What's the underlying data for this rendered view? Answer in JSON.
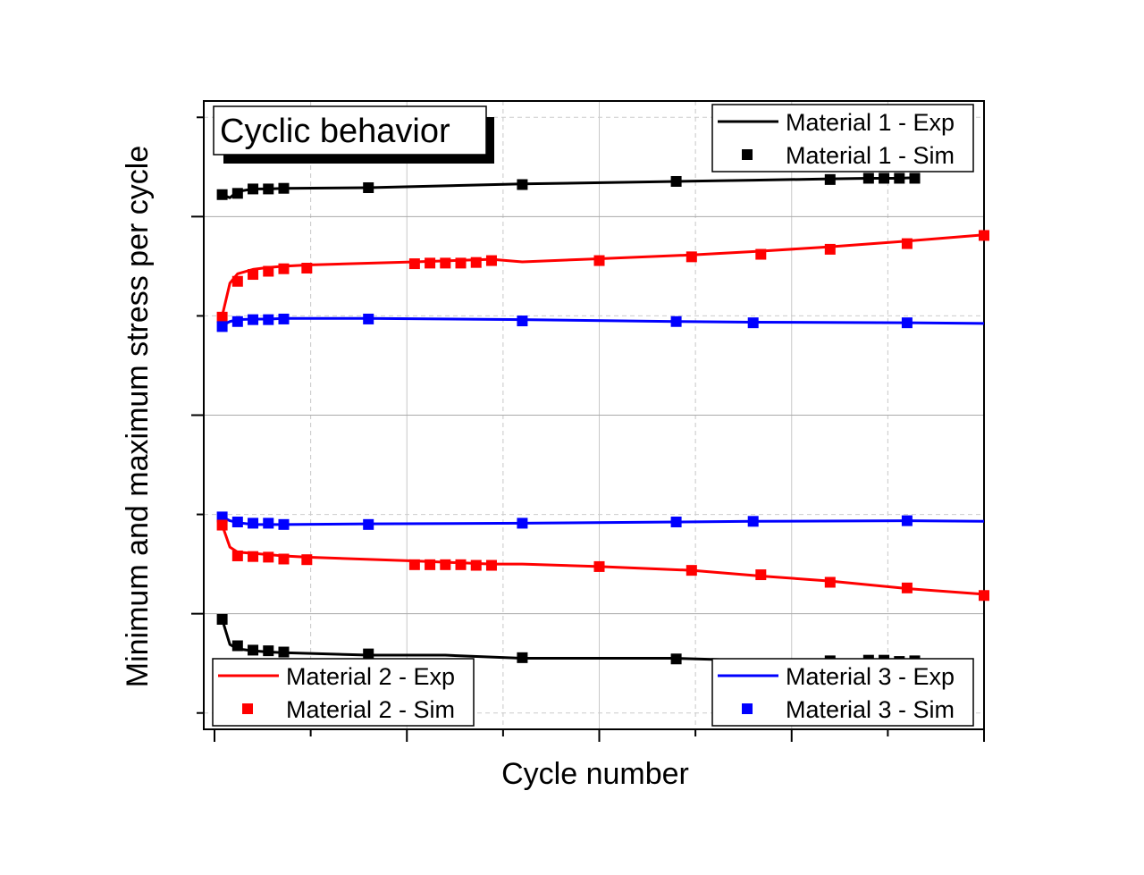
{
  "chart_data": {
    "type": "line",
    "title": "Cyclic behavior",
    "xlabel": "Cycle number",
    "ylabel": "Minimum and maximum stress per cycle",
    "xlim": [
      0,
      100
    ],
    "ylim": [
      0,
      100
    ],
    "grid": true,
    "tick_labels_shown": false,
    "legends": [
      {
        "placement": "top-right",
        "entries": [
          "Material 1 - Exp",
          "Material 1 - Sim"
        ]
      },
      {
        "placement": "bottom-left",
        "entries": [
          "Material 2 - Exp",
          "Material 2 - Sim"
        ]
      },
      {
        "placement": "bottom-right",
        "entries": [
          "Material 3 - Exp",
          "Material 3 - Sim"
        ]
      }
    ],
    "series": [
      {
        "name": "Material 1 - Exp",
        "material": "m1",
        "kind": "line",
        "color": "#000000",
        "group": "max",
        "x": [
          1,
          2,
          3,
          5,
          7,
          9,
          20,
          40,
          60,
          70,
          80,
          85,
          87,
          89,
          91
        ],
        "y": [
          85.1,
          84.6,
          85.6,
          86.0,
          86.0,
          86.1,
          86.2,
          86.8,
          87.2,
          87.4,
          87.6,
          87.7,
          87.7,
          87.7,
          87.8
        ]
      },
      {
        "name": "Material 1 - Sim",
        "material": "m1",
        "kind": "marker",
        "color": "#000000",
        "group": "max",
        "x": [
          1,
          3,
          5,
          7,
          9,
          20,
          40,
          60,
          80,
          85,
          87,
          89,
          91
        ],
        "y": [
          85.1,
          85.3,
          86.0,
          86.0,
          86.1,
          86.2,
          86.7,
          87.2,
          87.5,
          87.7,
          87.7,
          87.7,
          87.7
        ]
      },
      {
        "name": "Material 2 - Exp",
        "material": "m2",
        "kind": "line",
        "color": "#ff0000",
        "group": "max",
        "x": [
          1,
          2,
          3,
          5,
          7,
          9,
          12,
          26,
          36,
          40,
          50,
          62,
          71,
          80,
          90,
          100
        ],
        "y": [
          65.8,
          71.0,
          72.5,
          73.2,
          73.5,
          73.7,
          73.9,
          74.4,
          74.8,
          74.4,
          74.9,
          75.5,
          76.1,
          76.8,
          77.7,
          78.7
        ]
      },
      {
        "name": "Material 2 - Sim",
        "material": "m2",
        "kind": "marker",
        "color": "#ff0000",
        "group": "max",
        "x": [
          1,
          3,
          5,
          7,
          9,
          12,
          26,
          28,
          30,
          32,
          34,
          36,
          50,
          62,
          71,
          80,
          90,
          100
        ],
        "y": [
          65.6,
          71.3,
          72.4,
          72.9,
          73.3,
          73.4,
          74.1,
          74.2,
          74.2,
          74.2,
          74.3,
          74.6,
          74.6,
          75.2,
          75.6,
          76.4,
          77.3,
          78.6
        ]
      },
      {
        "name": "Material 3 - Exp",
        "material": "m3",
        "kind": "line",
        "color": "#0000ff",
        "group": "max",
        "x": [
          1,
          2,
          3,
          5,
          7,
          9,
          20,
          40,
          60,
          70,
          90,
          100
        ],
        "y": [
          64.3,
          64.9,
          65.2,
          65.3,
          65.3,
          65.4,
          65.4,
          65.2,
          64.9,
          64.8,
          64.7,
          64.6
        ]
      },
      {
        "name": "Material 3 - Sim",
        "material": "m3",
        "kind": "marker",
        "color": "#0000ff",
        "group": "max",
        "x": [
          1,
          3,
          5,
          7,
          9,
          20,
          40,
          60,
          70,
          90
        ],
        "y": [
          64.1,
          64.9,
          65.2,
          65.2,
          65.3,
          65.3,
          65.0,
          64.9,
          64.7,
          64.7
        ]
      },
      {
        "name": "Material 3 - Exp",
        "material": "m3",
        "kind": "line",
        "color": "#0000ff",
        "group": "min",
        "x": [
          1,
          2,
          3,
          5,
          7,
          9,
          20,
          40,
          60,
          70,
          90,
          100
        ],
        "y": [
          33.8,
          33.2,
          32.9,
          32.6,
          32.6,
          32.6,
          32.7,
          32.8,
          33.0,
          33.1,
          33.2,
          33.1
        ]
      },
      {
        "name": "Material 3 - Sim",
        "material": "m3",
        "kind": "marker",
        "color": "#0000ff",
        "group": "min",
        "x": [
          1,
          3,
          5,
          7,
          9,
          20,
          40,
          60,
          70,
          90
        ],
        "y": [
          33.8,
          33.0,
          32.8,
          32.8,
          32.6,
          32.6,
          32.8,
          33.0,
          33.1,
          33.2
        ]
      },
      {
        "name": "Material 2 - Exp",
        "material": "m2",
        "kind": "line",
        "color": "#ff0000",
        "group": "min",
        "x": [
          1,
          2,
          3,
          5,
          7,
          9,
          12,
          26,
          36,
          40,
          50,
          62,
          71,
          80,
          90,
          100
        ],
        "y": [
          32.5,
          29.0,
          28.2,
          28.0,
          27.8,
          27.6,
          27.4,
          26.8,
          26.3,
          26.3,
          25.9,
          25.3,
          24.4,
          23.6,
          22.4,
          21.5
        ]
      },
      {
        "name": "Material 2 - Sim",
        "material": "m2",
        "kind": "marker",
        "color": "#ff0000",
        "group": "min",
        "x": [
          1,
          3,
          5,
          7,
          9,
          12,
          26,
          28,
          30,
          32,
          34,
          36,
          50,
          62,
          71,
          80,
          90,
          100
        ],
        "y": [
          32.5,
          27.6,
          27.5,
          27.4,
          27.1,
          27.0,
          26.2,
          26.2,
          26.2,
          26.2,
          26.1,
          26.1,
          25.9,
          25.3,
          24.6,
          23.4,
          22.5,
          21.3
        ]
      },
      {
        "name": "Material 1 - Exp",
        "material": "m1",
        "kind": "line",
        "color": "#000000",
        "group": "min",
        "x": [
          1,
          2,
          3,
          5,
          7,
          9,
          20,
          30,
          40,
          60,
          80,
          85,
          87,
          89,
          91
        ],
        "y": [
          17.5,
          13.5,
          12.8,
          12.5,
          12.3,
          12.2,
          11.8,
          11.8,
          11.3,
          11.3,
          10.6,
          10.6,
          10.8,
          10.5,
          10.7
        ]
      },
      {
        "name": "Material 1 - Sim",
        "material": "m1",
        "kind": "marker",
        "color": "#000000",
        "group": "min",
        "x": [
          1,
          3,
          5,
          7,
          9,
          20,
          40,
          60,
          80,
          85,
          87,
          89,
          91
        ],
        "y": [
          17.5,
          13.3,
          12.6,
          12.5,
          12.3,
          12.0,
          11.4,
          11.2,
          10.9,
          11.0,
          11.0,
          10.8,
          10.9
        ]
      }
    ]
  }
}
